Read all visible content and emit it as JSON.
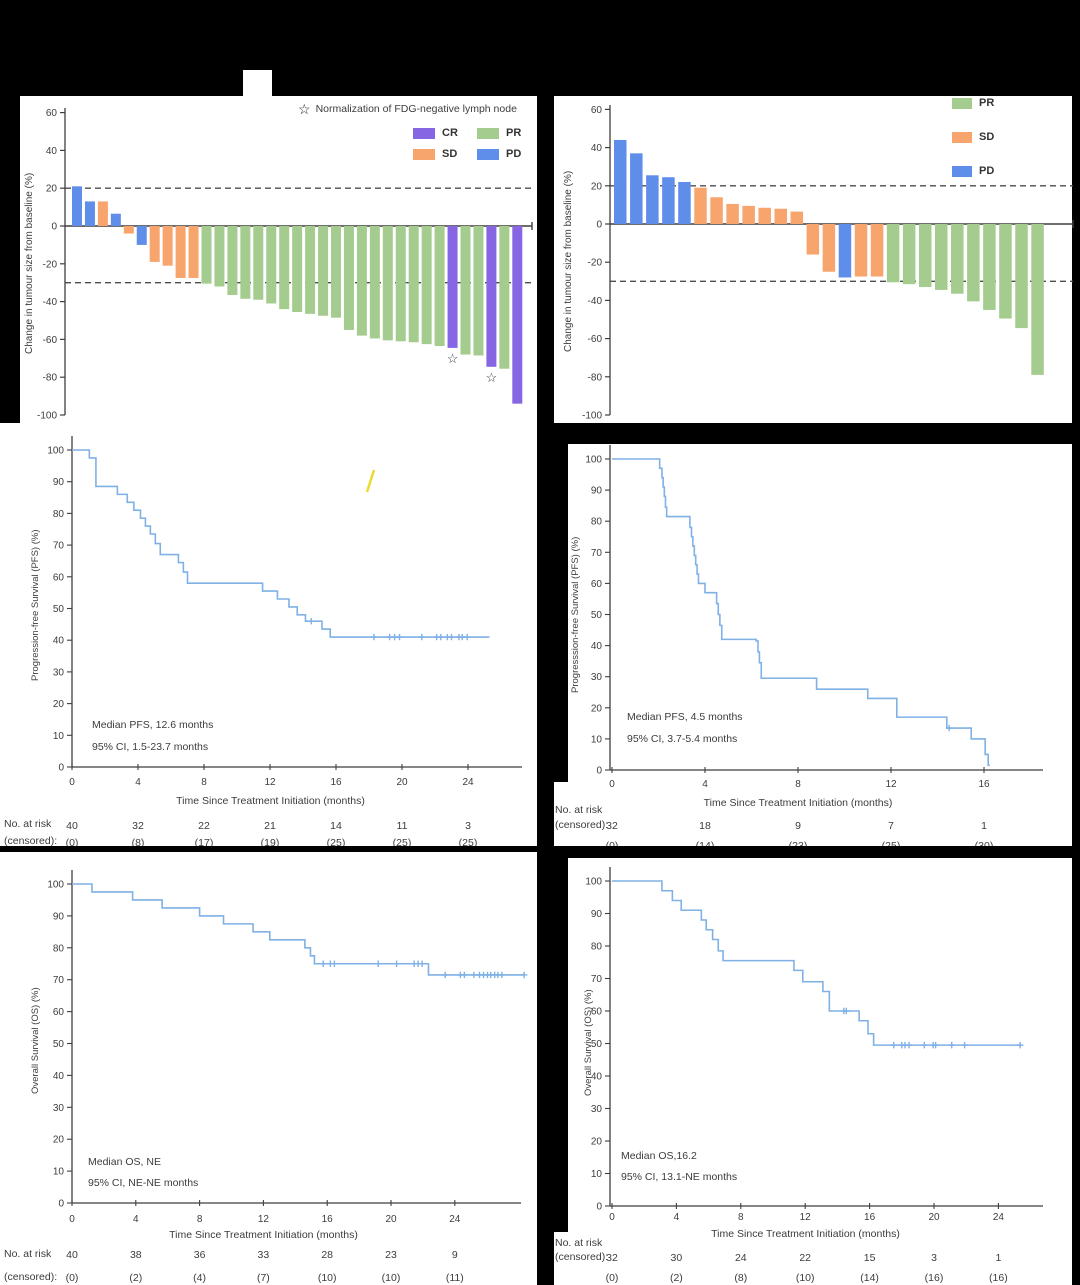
{
  "colors": {
    "CR": "#8666e3",
    "PR": "#a3cc8e",
    "SD": "#f8a56d",
    "PD": "#5e8eea",
    "km_line": "#7fb1e6",
    "axis": "#3f3f3f",
    "dashed": "#4c4c4c",
    "text": "#3c3c3c",
    "star": "#1a1a1a",
    "artifact": "#eeda2e",
    "page_background": "#000000",
    "panel_background": "#ffffff"
  },
  "chart_data": [
    {
      "type": "bar",
      "name": "waterfall-cohort-1",
      "ylabel": "Change in tumour size from baseline (%)",
      "ylim": [
        -100,
        60
      ],
      "yticks": [
        60,
        40,
        20,
        0,
        -20,
        -40,
        -60,
        -80,
        -100
      ],
      "reference_lines": [
        20,
        -30
      ],
      "grid": "off",
      "star_note": "Normalization of FDG-negative lymph node",
      "legend_position": "top-right",
      "legend": [
        {
          "label": "CR",
          "color_key": "CR"
        },
        {
          "label": "PR",
          "color_key": "PR"
        },
        {
          "label": "SD",
          "color_key": "SD"
        },
        {
          "label": "PD",
          "color_key": "PD"
        }
      ],
      "values": [
        21,
        13,
        13,
        6.5,
        -4,
        -10,
        -19,
        -21,
        -27.5,
        -27.5,
        -30.5,
        -32,
        -36.5,
        -38.5,
        -39,
        -41,
        -44,
        -45.5,
        -46.5,
        -47.5,
        -48.5,
        -55,
        -58,
        -59.5,
        -60.5,
        -61,
        -61.5,
        -62.5,
        -63.5,
        -64.5,
        -68,
        -68.5,
        -74.5,
        -75.5,
        -94
      ],
      "responses": [
        "PD",
        "PD",
        "SD",
        "PD",
        "SD",
        "PD",
        "SD",
        "SD",
        "SD",
        "SD",
        "PR",
        "PR",
        "PR",
        "PR",
        "PR",
        "PR",
        "PR",
        "PR",
        "PR",
        "PR",
        "PR",
        "PR",
        "PR",
        "PR",
        "PR",
        "PR",
        "PR",
        "PR",
        "PR",
        "CR",
        "PR",
        "PR",
        "CR",
        "PR",
        "CR"
      ],
      "starred_bars": [
        29,
        32
      ]
    },
    {
      "type": "bar",
      "name": "waterfall-cohort-2",
      "ylabel": "Change in tumour size from baseline (%)",
      "ylim": [
        -100,
        60
      ],
      "yticks": [
        60,
        40,
        20,
        0,
        -20,
        -40,
        -60,
        -80,
        -100
      ],
      "reference_lines": [
        20,
        -30
      ],
      "grid": "off",
      "legend_position": "top-right",
      "legend": [
        {
          "label": "PR",
          "color_key": "PR"
        },
        {
          "label": "SD",
          "color_key": "SD"
        },
        {
          "label": "PD",
          "color_key": "PD"
        }
      ],
      "values": [
        44,
        37,
        25.5,
        24.5,
        22,
        19,
        14,
        10.5,
        9.5,
        8.5,
        8,
        6.5,
        -16,
        -25,
        -28,
        -27.5,
        -27.5,
        -30.5,
        -31.5,
        -33,
        -34.5,
        -36.5,
        -40.5,
        -45,
        -49.5,
        -54.5,
        -79
      ],
      "responses": [
        "PD",
        "PD",
        "PD",
        "PD",
        "PD",
        "SD",
        "SD",
        "SD",
        "SD",
        "SD",
        "SD",
        "SD",
        "SD",
        "SD",
        "PD",
        "SD",
        "SD",
        "PR",
        "PR",
        "PR",
        "PR",
        "PR",
        "PR",
        "PR",
        "PR",
        "PR",
        "PR"
      ],
      "starred_bars": []
    },
    {
      "type": "line",
      "name": "pfs-cohort-1",
      "ylabel": "Progression-free Survival (PFS) (%)",
      "xlabel": "Time Since Treatment Initiation (months)",
      "ylim": [
        0,
        100
      ],
      "yticks": [
        0,
        10,
        20,
        30,
        40,
        50,
        60,
        70,
        80,
        90,
        100
      ],
      "xticks": [
        0,
        4,
        8,
        12,
        16,
        20,
        24
      ],
      "median_label": "Median PFS, 12.6 months",
      "ci_label": "95% CI, 1.5-23.7 months",
      "risk_header": "No. at risk",
      "censored_header": "(censored):",
      "risk": [
        "40",
        "32",
        "22",
        "21",
        "14",
        "11",
        "3"
      ],
      "censored": [
        "(0)",
        "(8)",
        "(17)",
        "(19)",
        "(25)",
        "(25)",
        "(25)"
      ],
      "steps": [
        [
          1.05,
          97.5
        ],
        [
          1.45,
          88.5
        ],
        [
          2.75,
          86
        ],
        [
          3.35,
          83.5
        ],
        [
          3.75,
          81
        ],
        [
          4.15,
          78.5
        ],
        [
          4.45,
          76
        ],
        [
          4.75,
          73.5
        ],
        [
          5.05,
          70.5
        ],
        [
          5.35,
          67
        ],
        [
          6.45,
          64.5
        ],
        [
          6.75,
          61.5
        ],
        [
          7.0,
          58
        ],
        [
          11.55,
          55.5
        ],
        [
          12.45,
          53
        ],
        [
          13.15,
          50.5
        ],
        [
          13.65,
          48
        ],
        [
          14.15,
          46
        ],
        [
          15.15,
          43.5
        ],
        [
          15.65,
          41
        ]
      ],
      "end_time": 25.3,
      "censor_marks": [
        [
          14.5,
          46
        ],
        [
          18.3,
          41
        ],
        [
          19.25,
          41
        ],
        [
          19.55,
          41
        ],
        [
          19.85,
          41
        ],
        [
          21.2,
          41
        ],
        [
          22.1,
          41
        ],
        [
          22.35,
          41
        ],
        [
          22.75,
          41
        ],
        [
          23.0,
          41
        ],
        [
          23.45,
          41
        ],
        [
          23.65,
          41
        ],
        [
          23.95,
          41
        ]
      ]
    },
    {
      "type": "line",
      "name": "pfs-cohort-2",
      "ylabel": "Progresssion-free Survival (PFS) (%)",
      "xlabel": "Time Since Treatment Initiation (months)",
      "ylim": [
        0,
        100
      ],
      "yticks": [
        0,
        10,
        20,
        30,
        40,
        50,
        60,
        70,
        80,
        90,
        100
      ],
      "xticks": [
        0,
        4,
        8,
        12,
        16
      ],
      "median_label": "Median PFS, 4.5 months",
      "ci_label": "95% CI, 3.7-5.4 months",
      "risk_header": "No. at risk",
      "censored_header": "(censored):",
      "risk": [
        "32",
        "18",
        "9",
        "7",
        "1"
      ],
      "censored": [
        "(0)",
        "(14)",
        "(23)",
        "(25)",
        "(30)"
      ],
      "steps": [
        [
          2.05,
          97
        ],
        [
          2.15,
          94
        ],
        [
          2.2,
          91
        ],
        [
          2.25,
          88
        ],
        [
          2.3,
          84.5
        ],
        [
          2.35,
          81.5
        ],
        [
          3.35,
          78
        ],
        [
          3.42,
          75
        ],
        [
          3.48,
          72
        ],
        [
          3.54,
          69
        ],
        [
          3.6,
          66
        ],
        [
          3.66,
          63
        ],
        [
          3.72,
          60
        ],
        [
          4.0,
          57
        ],
        [
          4.5,
          53.5
        ],
        [
          4.57,
          50
        ],
        [
          4.64,
          46.5
        ],
        [
          4.72,
          42
        ],
        [
          6.2,
          41.5
        ],
        [
          6.28,
          38
        ],
        [
          6.34,
          34.5
        ],
        [
          6.42,
          29.5
        ],
        [
          8.8,
          26
        ],
        [
          11.0,
          23
        ],
        [
          12.25,
          17
        ],
        [
          14.4,
          13.5
        ],
        [
          15.45,
          10
        ],
        [
          16.05,
          5
        ],
        [
          16.18,
          1.5
        ]
      ],
      "end_time": 16.25,
      "censor_marks": [
        [
          14.5,
          13.5
        ]
      ]
    },
    {
      "type": "line",
      "name": "os-cohort-1",
      "ylabel": "Overall Survival (OS) (%)",
      "xlabel": "Time Since Treatment Initiation (months)",
      "ylim": [
        0,
        100
      ],
      "yticks": [
        0,
        10,
        20,
        30,
        40,
        50,
        60,
        70,
        80,
        90,
        100
      ],
      "xticks": [
        0,
        4,
        8,
        12,
        16,
        20,
        24
      ],
      "median_label": "Median OS, NE",
      "ci_label": "95% CI, NE-NE months",
      "risk_header": "No. at risk",
      "censored_header": "(censored):",
      "risk": [
        "40",
        "38",
        "36",
        "33",
        "28",
        "23",
        "9"
      ],
      "censored": [
        "(0)",
        "(2)",
        "(4)",
        "(7)",
        "(10)",
        "(10)",
        "(11)"
      ],
      "steps": [
        [
          1.25,
          97.5
        ],
        [
          3.8,
          95
        ],
        [
          5.65,
          92.5
        ],
        [
          8.0,
          90
        ],
        [
          9.5,
          87.5
        ],
        [
          11.35,
          85
        ],
        [
          12.4,
          82.5
        ],
        [
          14.6,
          80
        ],
        [
          14.95,
          77.5
        ],
        [
          15.2,
          75
        ],
        [
          22.35,
          71.5
        ]
      ],
      "end_time": 28.4,
      "censor_marks": [
        [
          15.75,
          75
        ],
        [
          16.2,
          75
        ],
        [
          16.45,
          75
        ],
        [
          19.2,
          75
        ],
        [
          20.35,
          75
        ],
        [
          21.45,
          75
        ],
        [
          21.7,
          75
        ],
        [
          21.95,
          75
        ],
        [
          23.4,
          71.5
        ],
        [
          24.35,
          71.5
        ],
        [
          24.6,
          71.5
        ],
        [
          25.2,
          71.5
        ],
        [
          25.55,
          71.5
        ],
        [
          25.8,
          71.5
        ],
        [
          26.05,
          71.5
        ],
        [
          26.25,
          71.5
        ],
        [
          26.5,
          71.5
        ],
        [
          26.7,
          71.5
        ],
        [
          26.95,
          71.5
        ],
        [
          28.35,
          71.5
        ]
      ]
    },
    {
      "type": "line",
      "name": "os-cohort-2",
      "ylabel": "Overall Survival (OS) (%)",
      "xlabel": "Time Since Treatment Initiation (months)",
      "ylim": [
        0,
        100
      ],
      "yticks": [
        0,
        10,
        20,
        30,
        40,
        50,
        60,
        70,
        80,
        90,
        100
      ],
      "xticks": [
        0,
        4,
        8,
        12,
        16,
        20,
        24
      ],
      "median_label": "Median OS,16.2",
      "ci_label": "95% CI, 13.1-NE months",
      "risk_header": "No. at risk",
      "censored_header": "(censored):",
      "risk": [
        "32",
        "30",
        "24",
        "22",
        "15",
        "3",
        "1"
      ],
      "censored": [
        "(0)",
        "(2)",
        "(8)",
        "(10)",
        "(14)",
        "(16)",
        "(16)"
      ],
      "steps": [
        [
          3.1,
          97
        ],
        [
          3.75,
          94
        ],
        [
          4.3,
          91
        ],
        [
          5.55,
          88
        ],
        [
          5.85,
          85
        ],
        [
          6.25,
          82
        ],
        [
          6.6,
          78.5
        ],
        [
          6.9,
          75.5
        ],
        [
          11.3,
          72.5
        ],
        [
          11.85,
          69
        ],
        [
          13.1,
          66
        ],
        [
          13.5,
          60
        ],
        [
          15.35,
          57
        ],
        [
          15.9,
          53
        ],
        [
          16.25,
          49.5
        ]
      ],
      "end_time": 25.4,
      "censor_marks": [
        [
          14.4,
          60
        ],
        [
          14.55,
          60
        ],
        [
          17.5,
          49.5
        ],
        [
          18.0,
          49.5
        ],
        [
          18.2,
          49.5
        ],
        [
          18.45,
          49.5
        ],
        [
          19.4,
          49.5
        ],
        [
          19.95,
          49.5
        ],
        [
          20.1,
          49.5
        ],
        [
          21.1,
          49.5
        ],
        [
          21.9,
          49.5
        ],
        [
          25.35,
          49.5
        ]
      ]
    }
  ]
}
